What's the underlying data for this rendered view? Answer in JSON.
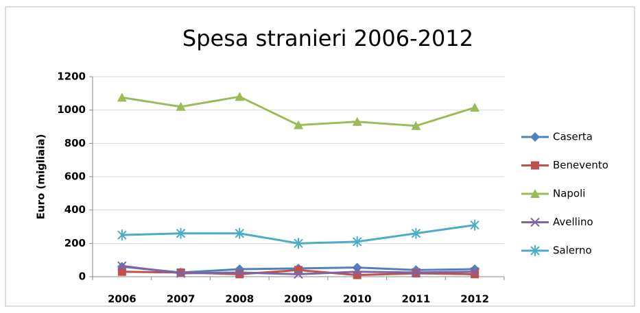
{
  "chart_data": {
    "type": "line",
    "title": "Spesa stranieri 2006-2012",
    "y_label": "Euro (migliaia)",
    "categories": [
      "2006",
      "2007",
      "2008",
      "2009",
      "2010",
      "2011",
      "2012"
    ],
    "series": [
      {
        "name": "Caserta",
        "color": "#4f81bd",
        "marker": "diamond",
        "values": [
          60,
          25,
          45,
          50,
          55,
          40,
          45
        ]
      },
      {
        "name": "Benevento",
        "color": "#c0504d",
        "marker": "square",
        "values": [
          30,
          25,
          15,
          40,
          10,
          20,
          15
        ]
      },
      {
        "name": "Napoli",
        "color": "#9bbb59",
        "marker": "triangle",
        "values": [
          1075,
          1020,
          1080,
          910,
          930,
          905,
          1015
        ]
      },
      {
        "name": "Avellino",
        "color": "#8064a2",
        "marker": "x",
        "values": [
          65,
          20,
          25,
          15,
          30,
          25,
          30
        ]
      },
      {
        "name": "Salerno",
        "color": "#4bacc6",
        "marker": "star",
        "values": [
          250,
          260,
          260,
          200,
          210,
          260,
          310
        ]
      }
    ],
    "ylim": [
      0,
      1200
    ],
    "yticks": [
      0,
      200,
      400,
      600,
      800,
      1000,
      1200
    ],
    "grid": true,
    "legend": "right"
  }
}
